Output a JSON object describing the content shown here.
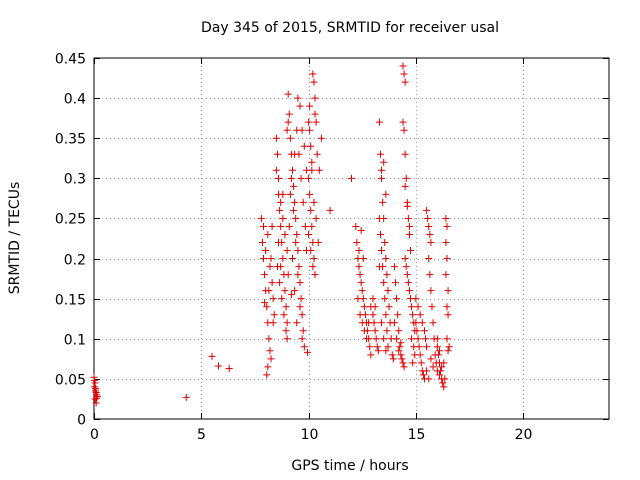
{
  "chart_data": {
    "type": "scatter",
    "title": "Day 345 of 2015, SRMTID for receiver usal",
    "xlabel": "GPS time / hours",
    "ylabel": "SRMTID / TECUs",
    "xlim": [
      0,
      24
    ],
    "ylim": [
      0,
      0.45
    ],
    "xticks": [
      0,
      5,
      10,
      15,
      20
    ],
    "xtick_labels": [
      "0",
      "5",
      "10",
      "15",
      "20"
    ],
    "yticks": [
      0,
      0.05,
      0.1,
      0.15,
      0.2,
      0.25,
      0.3,
      0.35,
      0.4,
      0.45
    ],
    "ytick_labels": [
      "0",
      "0.05",
      "0.1",
      "0.15",
      "0.2",
      "0.25",
      "0.3",
      "0.35",
      "0.4",
      "0.45"
    ],
    "grid": true,
    "marker": "+",
    "color": "#e00000",
    "series": [
      {
        "name": "SRMTID",
        "points": [
          [
            0.0,
            0.052
          ],
          [
            0.05,
            0.045
          ],
          [
            0.08,
            0.038
          ],
          [
            0.1,
            0.033
          ],
          [
            0.12,
            0.03
          ],
          [
            0.15,
            0.028
          ],
          [
            0.05,
            0.025
          ],
          [
            0.1,
            0.02
          ],
          [
            0.02,
            0.04
          ],
          [
            0.07,
            0.035
          ],
          [
            0.13,
            0.026
          ],
          [
            0.03,
            0.048
          ],
          [
            4.3,
            0.027
          ],
          [
            5.5,
            0.078
          ],
          [
            5.8,
            0.066
          ],
          [
            6.3,
            0.063
          ],
          [
            7.8,
            0.25
          ],
          [
            7.85,
            0.22
          ],
          [
            7.9,
            0.2
          ],
          [
            7.95,
            0.18
          ],
          [
            8.0,
            0.16
          ],
          [
            8.05,
            0.14
          ],
          [
            8.1,
            0.12
          ],
          [
            8.15,
            0.1
          ],
          [
            8.2,
            0.085
          ],
          [
            8.25,
            0.075
          ],
          [
            8.1,
            0.065
          ],
          [
            8.05,
            0.055
          ],
          [
            8.2,
            0.19
          ],
          [
            8.3,
            0.17
          ],
          [
            8.35,
            0.15
          ],
          [
            8.4,
            0.13
          ],
          [
            7.9,
            0.24
          ],
          [
            8.0,
            0.21
          ],
          [
            8.1,
            0.23
          ],
          [
            8.25,
            0.2
          ],
          [
            8.3,
            0.24
          ],
          [
            7.95,
            0.145
          ],
          [
            8.15,
            0.16
          ],
          [
            8.35,
            0.12
          ],
          [
            8.5,
            0.31
          ],
          [
            8.55,
            0.33
          ],
          [
            8.6,
            0.28
          ],
          [
            8.65,
            0.26
          ],
          [
            8.7,
            0.24
          ],
          [
            8.75,
            0.22
          ],
          [
            8.8,
            0.2
          ],
          [
            8.85,
            0.18
          ],
          [
            8.9,
            0.16
          ],
          [
            8.95,
            0.14
          ],
          [
            9.0,
            0.12
          ],
          [
            8.5,
            0.35
          ],
          [
            8.6,
            0.3
          ],
          [
            8.7,
            0.27
          ],
          [
            8.8,
            0.25
          ],
          [
            8.9,
            0.23
          ],
          [
            9.0,
            0.21
          ],
          [
            8.55,
            0.19
          ],
          [
            8.65,
            0.17
          ],
          [
            8.75,
            0.15
          ],
          [
            8.85,
            0.13
          ],
          [
            8.95,
            0.11
          ],
          [
            9.0,
            0.1
          ],
          [
            8.6,
            0.22
          ],
          [
            8.7,
            0.19
          ],
          [
            8.8,
            0.28
          ],
          [
            9.0,
            0.36
          ],
          [
            9.05,
            0.37
          ],
          [
            9.1,
            0.38
          ],
          [
            9.15,
            0.35
          ],
          [
            9.2,
            0.33
          ],
          [
            9.25,
            0.31
          ],
          [
            9.3,
            0.29
          ],
          [
            9.35,
            0.27
          ],
          [
            9.4,
            0.25
          ],
          [
            9.45,
            0.23
          ],
          [
            9.5,
            0.21
          ],
          [
            9.55,
            0.19
          ],
          [
            9.6,
            0.17
          ],
          [
            9.65,
            0.15
          ],
          [
            9.7,
            0.13
          ],
          [
            9.75,
            0.11
          ],
          [
            9.8,
            0.09
          ],
          [
            9.05,
            0.405
          ],
          [
            9.5,
            0.4
          ],
          [
            9.6,
            0.39
          ],
          [
            9.7,
            0.36
          ],
          [
            9.2,
            0.3
          ],
          [
            9.3,
            0.26
          ],
          [
            9.4,
            0.22
          ],
          [
            9.5,
            0.18
          ],
          [
            9.6,
            0.14
          ],
          [
            9.7,
            0.1
          ],
          [
            9.1,
            0.24
          ],
          [
            9.25,
            0.2
          ],
          [
            9.35,
            0.16
          ],
          [
            9.45,
            0.12
          ],
          [
            9.15,
            0.28
          ],
          [
            9.55,
            0.33
          ],
          [
            9.65,
            0.3
          ],
          [
            9.75,
            0.27
          ],
          [
            9.85,
            0.24
          ],
          [
            9.9,
            0.21
          ],
          [
            9.95,
            0.083
          ],
          [
            9.8,
            0.34
          ],
          [
            9.9,
            0.31
          ],
          [
            9.35,
            0.33
          ],
          [
            9.45,
            0.36
          ],
          [
            9.05,
            0.18
          ],
          [
            9.2,
            0.155
          ],
          [
            10.0,
            0.37
          ],
          [
            10.05,
            0.36
          ],
          [
            10.1,
            0.34
          ],
          [
            10.15,
            0.32
          ],
          [
            10.0,
            0.3
          ],
          [
            10.05,
            0.28
          ],
          [
            10.1,
            0.26
          ],
          [
            10.15,
            0.24
          ],
          [
            10.2,
            0.22
          ],
          [
            10.25,
            0.2
          ],
          [
            10.3,
            0.38
          ],
          [
            10.35,
            0.37
          ],
          [
            10.2,
            0.43
          ],
          [
            10.25,
            0.42
          ],
          [
            10.3,
            0.4
          ],
          [
            10.0,
            0.23
          ],
          [
            10.1,
            0.21
          ],
          [
            10.2,
            0.19
          ],
          [
            10.3,
            0.18
          ],
          [
            10.4,
            0.33
          ],
          [
            10.5,
            0.31
          ],
          [
            10.6,
            0.35
          ],
          [
            10.05,
            0.39
          ],
          [
            10.15,
            0.31
          ],
          [
            10.25,
            0.27
          ],
          [
            10.35,
            0.25
          ],
          [
            10.45,
            0.22
          ],
          [
            11.0,
            0.26
          ],
          [
            12.0,
            0.3
          ],
          [
            12.2,
            0.24
          ],
          [
            12.25,
            0.22
          ],
          [
            12.3,
            0.2
          ],
          [
            12.35,
            0.19
          ],
          [
            12.4,
            0.18
          ],
          [
            12.45,
            0.17
          ],
          [
            12.5,
            0.16
          ],
          [
            12.55,
            0.15
          ],
          [
            12.6,
            0.14
          ],
          [
            12.65,
            0.13
          ],
          [
            12.7,
            0.12
          ],
          [
            12.75,
            0.11
          ],
          [
            12.8,
            0.1
          ],
          [
            12.85,
            0.09
          ],
          [
            12.9,
            0.08
          ],
          [
            12.3,
            0.15
          ],
          [
            12.4,
            0.13
          ],
          [
            12.5,
            0.12
          ],
          [
            12.6,
            0.11
          ],
          [
            12.7,
            0.1
          ],
          [
            12.8,
            0.12
          ],
          [
            12.9,
            0.14
          ],
          [
            13.0,
            0.13
          ],
          [
            13.05,
            0.12
          ],
          [
            13.1,
            0.11
          ],
          [
            13.15,
            0.1
          ],
          [
            13.2,
            0.09
          ],
          [
            13.25,
            0.085
          ],
          [
            13.0,
            0.15
          ],
          [
            13.1,
            0.14
          ],
          [
            12.35,
            0.21
          ],
          [
            12.45,
            0.235
          ],
          [
            12.55,
            0.2
          ],
          [
            13.3,
            0.25
          ],
          [
            13.35,
            0.23
          ],
          [
            13.4,
            0.21
          ],
          [
            13.45,
            0.19
          ],
          [
            13.5,
            0.17
          ],
          [
            13.55,
            0.15
          ],
          [
            13.6,
            0.13
          ],
          [
            13.65,
            0.11
          ],
          [
            13.7,
            0.09
          ],
          [
            13.3,
            0.37
          ],
          [
            13.35,
            0.33
          ],
          [
            13.4,
            0.3
          ],
          [
            13.45,
            0.27
          ],
          [
            13.5,
            0.25
          ],
          [
            13.55,
            0.22
          ],
          [
            13.6,
            0.2
          ],
          [
            13.65,
            0.18
          ],
          [
            13.7,
            0.16
          ],
          [
            13.75,
            0.14
          ],
          [
            13.8,
            0.12
          ],
          [
            13.85,
            0.1
          ],
          [
            13.9,
            0.08
          ],
          [
            13.95,
            0.075
          ],
          [
            13.4,
            0.31
          ],
          [
            13.5,
            0.32
          ],
          [
            13.6,
            0.28
          ],
          [
            13.3,
            0.19
          ],
          [
            13.4,
            0.12
          ],
          [
            13.5,
            0.1
          ],
          [
            13.6,
            0.085
          ],
          [
            14.0,
            0.19
          ],
          [
            14.05,
            0.17
          ],
          [
            14.1,
            0.15
          ],
          [
            14.15,
            0.13
          ],
          [
            14.2,
            0.11
          ],
          [
            14.25,
            0.09
          ],
          [
            14.3,
            0.08
          ],
          [
            14.35,
            0.075
          ],
          [
            14.4,
            0.07
          ],
          [
            14.45,
            0.065
          ],
          [
            14.0,
            0.12
          ],
          [
            14.1,
            0.1
          ],
          [
            14.2,
            0.085
          ],
          [
            14.3,
            0.095
          ],
          [
            14.4,
            0.44
          ],
          [
            14.45,
            0.43
          ],
          [
            14.5,
            0.42
          ],
          [
            14.4,
            0.37
          ],
          [
            14.45,
            0.36
          ],
          [
            14.5,
            0.33
          ],
          [
            14.55,
            0.3
          ],
          [
            14.6,
            0.27
          ],
          [
            14.65,
            0.25
          ],
          [
            14.7,
            0.23
          ],
          [
            14.75,
            0.21
          ],
          [
            14.5,
            0.2
          ],
          [
            14.55,
            0.19
          ],
          [
            14.6,
            0.18
          ],
          [
            14.65,
            0.17
          ],
          [
            14.7,
            0.16
          ],
          [
            14.75,
            0.15
          ],
          [
            14.8,
            0.14
          ],
          [
            14.85,
            0.13
          ],
          [
            14.9,
            0.12
          ],
          [
            14.95,
            0.11
          ],
          [
            14.5,
            0.29
          ],
          [
            14.6,
            0.265
          ],
          [
            14.7,
            0.24
          ],
          [
            14.8,
            0.1
          ],
          [
            14.9,
            0.09
          ],
          [
            14.95,
            0.08
          ],
          [
            14.85,
            0.07
          ],
          [
            15.0,
            0.12
          ],
          [
            15.05,
            0.11
          ],
          [
            15.1,
            0.1
          ],
          [
            15.15,
            0.09
          ],
          [
            15.2,
            0.08
          ],
          [
            15.25,
            0.07
          ],
          [
            15.3,
            0.06
          ],
          [
            15.35,
            0.055
          ],
          [
            15.4,
            0.05
          ],
          [
            15.0,
            0.15
          ],
          [
            15.1,
            0.14
          ],
          [
            15.2,
            0.13
          ],
          [
            15.3,
            0.12
          ],
          [
            15.4,
            0.11
          ],
          [
            15.45,
            0.1
          ],
          [
            15.5,
            0.09
          ],
          [
            15.5,
            0.26
          ],
          [
            15.55,
            0.25
          ],
          [
            15.6,
            0.24
          ],
          [
            15.65,
            0.23
          ],
          [
            15.7,
            0.22
          ],
          [
            15.6,
            0.2
          ],
          [
            15.65,
            0.18
          ],
          [
            15.7,
            0.16
          ],
          [
            15.75,
            0.14
          ],
          [
            15.8,
            0.12
          ],
          [
            15.85,
            0.1
          ],
          [
            15.9,
            0.08
          ],
          [
            15.95,
            0.07
          ],
          [
            15.5,
            0.06
          ],
          [
            15.6,
            0.05
          ],
          [
            15.7,
            0.075
          ],
          [
            15.8,
            0.065
          ],
          [
            16.0,
            0.09
          ],
          [
            16.05,
            0.08
          ],
          [
            16.1,
            0.07
          ],
          [
            16.15,
            0.06
          ],
          [
            16.2,
            0.05
          ],
          [
            16.25,
            0.045
          ],
          [
            16.3,
            0.04
          ],
          [
            16.35,
            0.05
          ],
          [
            16.0,
            0.06
          ],
          [
            16.1,
            0.055
          ],
          [
            16.2,
            0.065
          ],
          [
            16.3,
            0.07
          ],
          [
            16.4,
            0.25
          ],
          [
            16.45,
            0.24
          ],
          [
            16.4,
            0.22
          ],
          [
            16.45,
            0.2
          ],
          [
            16.4,
            0.18
          ],
          [
            16.5,
            0.16
          ],
          [
            16.45,
            0.14
          ],
          [
            16.5,
            0.13
          ],
          [
            16.45,
            0.1
          ],
          [
            16.5,
            0.085
          ],
          [
            16.55,
            0.09
          ],
          [
            16.0,
            0.1
          ],
          [
            16.1,
            0.085
          ]
        ]
      }
    ]
  }
}
